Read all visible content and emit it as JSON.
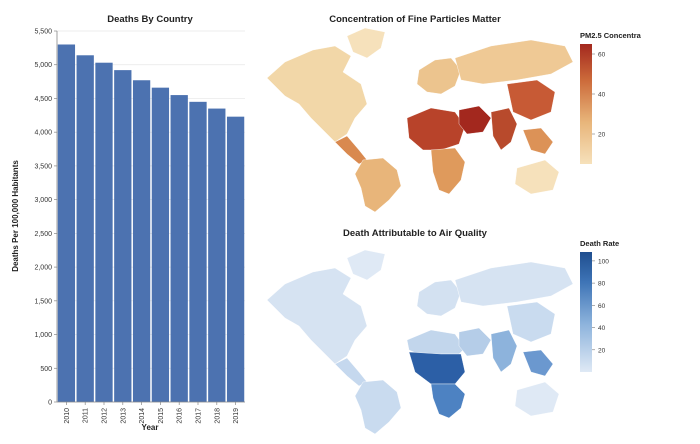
{
  "chart_data": [
    {
      "type": "bar",
      "title": "Deaths By Country",
      "xlabel": "Year",
      "ylabel": "Deaths Per 100,000 Habitants",
      "categories": [
        "2010",
        "2011",
        "2012",
        "2013",
        "2014",
        "2015",
        "2016",
        "2017",
        "2018",
        "2019"
      ],
      "values": [
        5300,
        5140,
        5030,
        4920,
        4770,
        4660,
        4550,
        4450,
        4350,
        4230
      ],
      "ylim": [
        0,
        5500
      ],
      "yticks": [
        "0",
        "500",
        "1,000",
        "1,500",
        "2,000",
        "2,500",
        "3,000",
        "3,500",
        "4,000",
        "4,500",
        "5,000",
        "5,500"
      ],
      "bar_color": "#4c72b0",
      "grid": true
    },
    {
      "type": "heatmap",
      "subtype": "choropleth-world-map",
      "title": "Concentration of Fine Particles Matter",
      "legend_title": "PM2.5 Concentra",
      "legend_ticks": [
        "60",
        "40",
        "20"
      ],
      "legend_range": [
        5,
        65
      ],
      "color_low": "#f6e1bb",
      "color_high": "#a3281e"
    },
    {
      "type": "heatmap",
      "subtype": "choropleth-world-map",
      "title": "Death Attributable to Air Quality",
      "legend_title": "Death Rate",
      "legend_ticks": [
        "100",
        "80",
        "60",
        "40",
        "20"
      ],
      "legend_range": [
        0,
        108
      ],
      "color_low": "#dfe9f5",
      "color_high": "#1f4e8f"
    }
  ]
}
